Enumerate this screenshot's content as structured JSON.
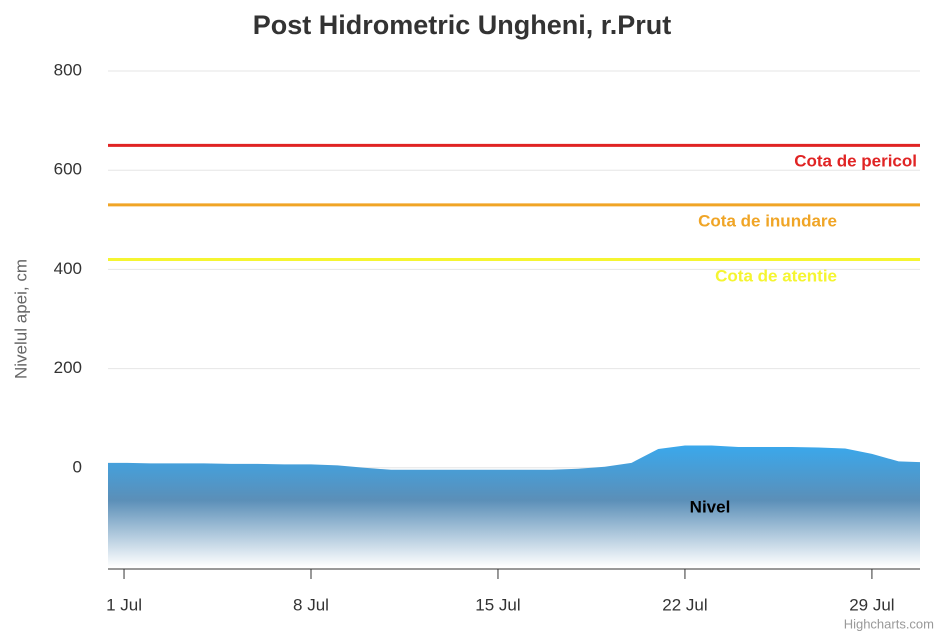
{
  "chart_data": {
    "type": "area",
    "title": "Post Hidrometric Ungheni, r.Prut",
    "y_axis_label": "Nivelul apei, cm",
    "credits": "Highcharts.com",
    "x": [
      0,
      1,
      2,
      3,
      4,
      5,
      6,
      7,
      8,
      9,
      10,
      11,
      12,
      13,
      14,
      15,
      16,
      17,
      18,
      19,
      20,
      21,
      22,
      23,
      24,
      25,
      26,
      27,
      28,
      29,
      30,
      31
    ],
    "xlim": [
      0.4,
      30.8
    ],
    "xticks": [
      {
        "value": 1,
        "label": "1 Jul"
      },
      {
        "value": 8,
        "label": "8 Jul"
      },
      {
        "value": 15,
        "label": "15 Jul"
      },
      {
        "value": 22,
        "label": "22 Jul"
      },
      {
        "value": 29,
        "label": "29 Jul"
      }
    ],
    "ylim": [
      -200,
      800
    ],
    "yticks": [
      0,
      200,
      400,
      600,
      800
    ],
    "grid": true,
    "series": [
      {
        "name": "Nivel",
        "color": "#3aa8ec",
        "values": [
          10,
          10,
          9,
          9,
          9,
          8,
          8,
          7,
          7,
          5,
          0,
          -4,
          -4,
          -4,
          -4,
          -4,
          -4,
          -4,
          -2,
          2,
          10,
          38,
          45,
          45,
          42,
          42,
          42,
          41,
          39,
          28,
          13,
          11
        ]
      }
    ],
    "plot_lines": [
      {
        "value": 650,
        "label": "Cota de pericol",
        "color": "#e02424"
      },
      {
        "value": 530,
        "label": "Cota de inundare",
        "color": "#f0a526"
      },
      {
        "value": 420,
        "label": "Cota de atentie",
        "color": "#f5f531"
      }
    ]
  }
}
